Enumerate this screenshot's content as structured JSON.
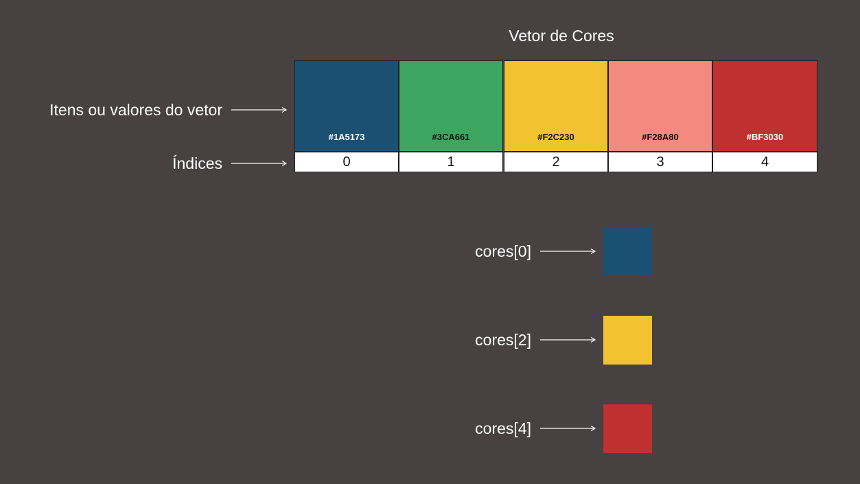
{
  "title": "Vetor de Cores",
  "labels": {
    "items": "Itens ou valores do vetor",
    "indices": "Índices"
  },
  "vector": [
    {
      "index": "0",
      "hex": "#1A5173",
      "color": "#1A5173",
      "text_color": "#ffffff"
    },
    {
      "index": "1",
      "hex": "#3CA661",
      "color": "#3CA661",
      "text_color": "#111111"
    },
    {
      "index": "2",
      "hex": "#F2C230",
      "color": "#F2C230",
      "text_color": "#111111"
    },
    {
      "index": "3",
      "hex": "#F28A80",
      "color": "#F28A80",
      "text_color": "#111111"
    },
    {
      "index": "4",
      "hex": "#BF3030",
      "color": "#BF3030",
      "text_color": "#ffffff"
    }
  ],
  "accesses": [
    {
      "label": "cores[0]",
      "color": "#1A5173"
    },
    {
      "label": "cores[2]",
      "color": "#F2C230"
    },
    {
      "label": "cores[4]",
      "color": "#BF3030"
    }
  ]
}
